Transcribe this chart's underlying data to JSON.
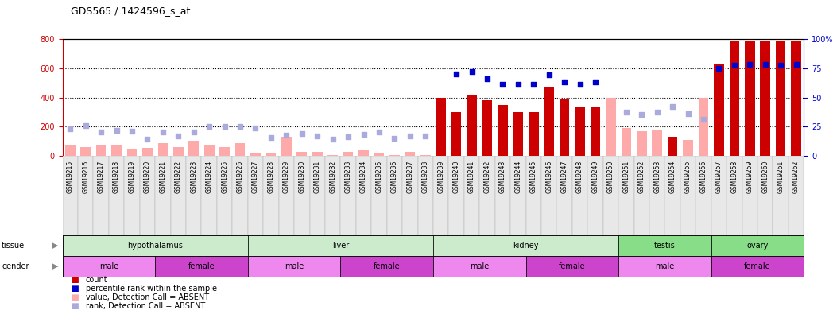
{
  "title": "GDS565 / 1424596_s_at",
  "samples": [
    "GSM19215",
    "GSM19216",
    "GSM19217",
    "GSM19218",
    "GSM19219",
    "GSM19220",
    "GSM19221",
    "GSM19222",
    "GSM19223",
    "GSM19224",
    "GSM19225",
    "GSM19226",
    "GSM19227",
    "GSM19228",
    "GSM19229",
    "GSM19230",
    "GSM19231",
    "GSM19232",
    "GSM19233",
    "GSM19234",
    "GSM19235",
    "GSM19236",
    "GSM19237",
    "GSM19238",
    "GSM19239",
    "GSM19240",
    "GSM19241",
    "GSM19242",
    "GSM19243",
    "GSM19244",
    "GSM19245",
    "GSM19246",
    "GSM19247",
    "GSM19248",
    "GSM19249",
    "GSM19250",
    "GSM19251",
    "GSM19252",
    "GSM19253",
    "GSM19254",
    "GSM19255",
    "GSM19256",
    "GSM19257",
    "GSM19258",
    "GSM19259",
    "GSM19260",
    "GSM19261",
    "GSM19262"
  ],
  "count_values": [
    null,
    null,
    null,
    null,
    null,
    null,
    null,
    null,
    null,
    null,
    null,
    null,
    null,
    null,
    null,
    null,
    null,
    null,
    null,
    null,
    null,
    null,
    null,
    null,
    400,
    300,
    420,
    380,
    350,
    300,
    300,
    470,
    390,
    330,
    330,
    null,
    null,
    null,
    null,
    130,
    null,
    null,
    630,
    780,
    780,
    780,
    780,
    780
  ],
  "count_absent": [
    70,
    60,
    80,
    75,
    50,
    55,
    90,
    60,
    105,
    80,
    60,
    90,
    25,
    20,
    130,
    30,
    30,
    10,
    30,
    40,
    20,
    10,
    30,
    10,
    10,
    10,
    10,
    10,
    10,
    10,
    10,
    10,
    10,
    10,
    10,
    400,
    190,
    170,
    175,
    null,
    110,
    395,
    null,
    null,
    null,
    null,
    null,
    null
  ],
  "rank_values": [
    null,
    null,
    null,
    null,
    null,
    null,
    null,
    null,
    null,
    null,
    null,
    null,
    null,
    null,
    null,
    null,
    null,
    null,
    null,
    null,
    null,
    null,
    null,
    null,
    null,
    560,
    575,
    525,
    490,
    490,
    490,
    555,
    505,
    490,
    505,
    null,
    null,
    null,
    null,
    null,
    null,
    null,
    595,
    620,
    625,
    625,
    620,
    625
  ],
  "rank_absent": [
    185,
    210,
    165,
    175,
    170,
    115,
    165,
    140,
    165,
    205,
    205,
    200,
    190,
    125,
    145,
    155,
    140,
    115,
    130,
    150,
    165,
    120,
    135,
    140,
    null,
    null,
    null,
    null,
    null,
    null,
    null,
    null,
    null,
    null,
    null,
    null,
    300,
    285,
    300,
    340,
    290,
    250,
    null,
    null,
    null,
    null,
    null,
    null
  ],
  "tissue_groups": [
    {
      "label": "hypothalamus",
      "start": 0,
      "end": 12,
      "color": "#cceacc"
    },
    {
      "label": "liver",
      "start": 12,
      "end": 24,
      "color": "#cceacc"
    },
    {
      "label": "kidney",
      "start": 24,
      "end": 36,
      "color": "#cceacc"
    },
    {
      "label": "testis",
      "start": 36,
      "end": 42,
      "color": "#88dd88"
    },
    {
      "label": "ovary",
      "start": 42,
      "end": 48,
      "color": "#88dd88"
    }
  ],
  "gender_groups": [
    {
      "label": "male",
      "start": 0,
      "end": 6,
      "color": "#ee88ee"
    },
    {
      "label": "female",
      "start": 6,
      "end": 12,
      "color": "#cc44cc"
    },
    {
      "label": "male",
      "start": 12,
      "end": 18,
      "color": "#ee88ee"
    },
    {
      "label": "female",
      "start": 18,
      "end": 24,
      "color": "#cc44cc"
    },
    {
      "label": "male",
      "start": 24,
      "end": 30,
      "color": "#ee88ee"
    },
    {
      "label": "female",
      "start": 30,
      "end": 36,
      "color": "#cc44cc"
    },
    {
      "label": "male",
      "start": 36,
      "end": 42,
      "color": "#ee88ee"
    },
    {
      "label": "female",
      "start": 42,
      "end": 48,
      "color": "#cc44cc"
    }
  ],
  "ylim": [
    0,
    800
  ],
  "yticks": [
    0,
    200,
    400,
    600,
    800
  ],
  "right_yticks": [
    0,
    25,
    50,
    75,
    100
  ],
  "bar_color_present": "#cc0000",
  "bar_color_absent": "#ffaaaa",
  "rank_color_present": "#0000cc",
  "rank_color_absent": "#aaaadd",
  "bar_width": 0.65,
  "background_color": "#ffffff",
  "grid_color": "#000000",
  "axis_color_left": "#cc0000",
  "axis_color_right": "#0000cc"
}
